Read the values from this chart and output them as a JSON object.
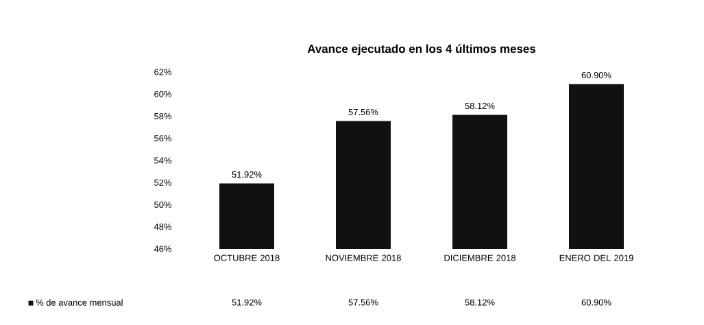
{
  "chart_data": {
    "type": "bar",
    "title": "Avance ejecutado en los 4 últimos meses",
    "categories": [
      "OCTUBRE 2018",
      "NOVIEMBRE 2018",
      "DICIEMBRE 2018",
      "ENERO DEL 2019"
    ],
    "series": [
      {
        "name": "% de avance mensual",
        "color": "#111111",
        "values": [
          51.92,
          57.56,
          58.12,
          60.9
        ],
        "value_labels": [
          "51.92%",
          "57.56%",
          "58.12%",
          "60.90%"
        ]
      }
    ],
    "ylim": [
      46,
      62
    ],
    "yticks": [
      {
        "value": 46,
        "label": "46%"
      },
      {
        "value": 48,
        "label": "48%"
      },
      {
        "value": 50,
        "label": "50%"
      },
      {
        "value": 52,
        "label": "52%"
      },
      {
        "value": 54,
        "label": "54%"
      },
      {
        "value": 56,
        "label": "56%"
      },
      {
        "value": 58,
        "label": "58%"
      },
      {
        "value": 60,
        "label": "60%"
      },
      {
        "value": 62,
        "label": "62%"
      }
    ],
    "legend": "bottom"
  }
}
